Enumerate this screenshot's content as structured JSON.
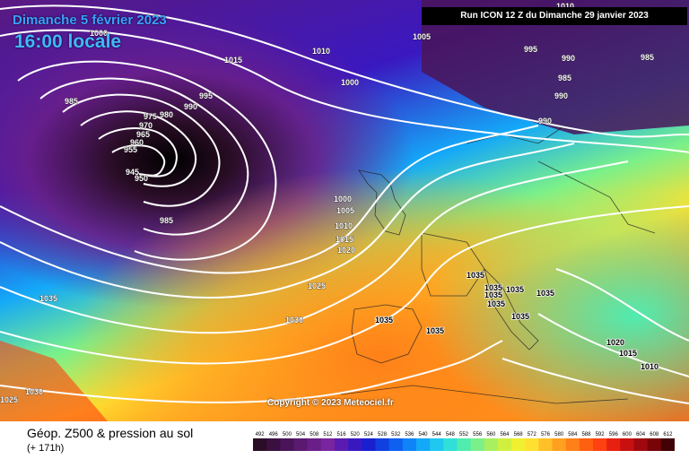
{
  "header": {
    "date": "Dimanche 5 février 2023",
    "time": "16:00 locale",
    "run": "Run ICON 12 Z du Dimanche 29 janvier 2023"
  },
  "copyright": "Copyright © 2023 Meteociel.fr",
  "footer": {
    "title": "Géop. Z500 & pression au sol",
    "subtitle": "(+ 171h)"
  },
  "legend": {
    "values": [
      "492",
      "496",
      "500",
      "504",
      "508",
      "512",
      "516",
      "520",
      "524",
      "528",
      "532",
      "536",
      "540",
      "544",
      "548",
      "552",
      "556",
      "560",
      "564",
      "568",
      "572",
      "576",
      "580",
      "584",
      "588",
      "592",
      "596",
      "600",
      "604",
      "608",
      "612"
    ],
    "colors": [
      "#2a0d26",
      "#3a1040",
      "#4a1558",
      "#5a1a70",
      "#6a1f88",
      "#7a24a0",
      "#5a1cb0",
      "#3a18c0",
      "#1a20d0",
      "#1040e0",
      "#0d60f0",
      "#0e84f8",
      "#14a8f8",
      "#20c8f0",
      "#30e0d8",
      "#50ecb0",
      "#7af08a",
      "#a8f060",
      "#d0f040",
      "#f0f030",
      "#ffe030",
      "#ffc028",
      "#ffa020",
      "#ff8018",
      "#ff6010",
      "#ff4010",
      "#e82010",
      "#c81010",
      "#a00810",
      "#780408",
      "#400204"
    ]
  },
  "pressure_labels": [
    {
      "text": "1000",
      "kind": "isobar"
    },
    {
      "text": "1005",
      "kind": "isobar"
    },
    {
      "text": "1015",
      "kind": "isobar"
    },
    {
      "text": "1010",
      "kind": "isobar"
    },
    {
      "text": "1000",
      "kind": "isobar"
    },
    {
      "text": "995",
      "kind": "isobar"
    },
    {
      "text": "990",
      "kind": "isobar"
    },
    {
      "text": "985",
      "kind": "isobar"
    },
    {
      "text": "980",
      "kind": "isobar"
    },
    {
      "text": "975",
      "kind": "isobar"
    },
    {
      "text": "970",
      "kind": "isobar"
    },
    {
      "text": "965",
      "kind": "isobar"
    },
    {
      "text": "960",
      "kind": "isobar"
    },
    {
      "text": "955",
      "kind": "isobar"
    },
    {
      "text": "945",
      "kind": "isobar"
    },
    {
      "text": "950",
      "kind": "isobar"
    },
    {
      "text": "985",
      "kind": "isobar"
    },
    {
      "text": "1010",
      "kind": "isobar"
    },
    {
      "text": "995",
      "kind": "isobar"
    },
    {
      "text": "990",
      "kind": "isobar"
    },
    {
      "text": "985",
      "kind": "isobar"
    },
    {
      "text": "985",
      "kind": "isobar"
    },
    {
      "text": "990",
      "kind": "isobar"
    },
    {
      "text": "990",
      "kind": "isobar"
    },
    {
      "text": "1000",
      "kind": "isobar"
    },
    {
      "text": "1005",
      "kind": "isobar"
    },
    {
      "text": "1010",
      "kind": "isobar"
    },
    {
      "text": "1015",
      "kind": "isobar"
    },
    {
      "text": "1020",
      "kind": "isobar"
    },
    {
      "text": "1025",
      "kind": "isobar"
    },
    {
      "text": "1030",
      "kind": "isobar"
    },
    {
      "text": "1035",
      "kind": "isobar"
    },
    {
      "text": "1035",
      "kind": "isobar"
    },
    {
      "text": "1035",
      "kind": "isobar"
    },
    {
      "text": "1035",
      "kind": "isobar"
    },
    {
      "text": "1035",
      "kind": "isobar"
    },
    {
      "text": "1035",
      "kind": "isobar"
    },
    {
      "text": "1035",
      "kind": "isobar"
    },
    {
      "text": "1035",
      "kind": "isobar"
    },
    {
      "text": "1035",
      "kind": "isobar"
    },
    {
      "text": "1030",
      "kind": "isobar"
    },
    {
      "text": "1025",
      "kind": "isobar"
    },
    {
      "text": "1020",
      "kind": "isobar"
    },
    {
      "text": "1015",
      "kind": "isobar"
    },
    {
      "text": "1010",
      "kind": "isobar"
    },
    {
      "text": "1035",
      "kind": "isobar"
    }
  ]
}
